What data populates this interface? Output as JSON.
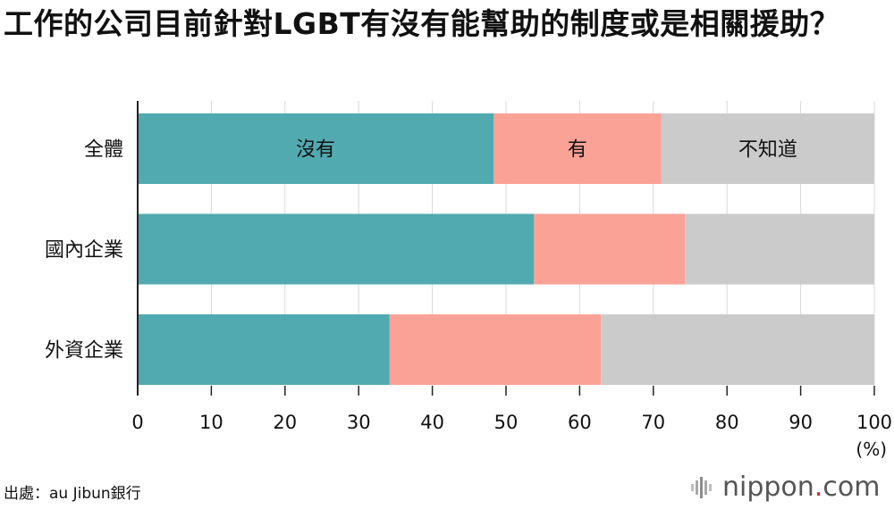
{
  "title": "工作的公司目前針對LGBT有沒有能幫助的制度或是相關援助？",
  "source": "出處：au Jibun銀行",
  "brand": {
    "name": "nippon",
    "dot": ".",
    "tld": "com"
  },
  "colors": {
    "no": "#52aab1",
    "yes": "#fba297",
    "unknown": "#cbcbcb",
    "grid": "#d8d8d8"
  },
  "chart_data": {
    "type": "bar",
    "orientation": "horizontal",
    "stacked": true,
    "categories": [
      "全體",
      "國內企業",
      "外資企業"
    ],
    "series": [
      {
        "name": "沒有",
        "values": [
          48.3,
          53.8,
          34.2
        ]
      },
      {
        "name": "有",
        "values": [
          22.8,
          20.5,
          28.7
        ]
      },
      {
        "name": "不知道",
        "values": [
          28.9,
          25.7,
          37.1
        ]
      }
    ],
    "xlim": [
      0,
      100
    ],
    "xticks": [
      0,
      10,
      20,
      30,
      40,
      50,
      60,
      70,
      80,
      90,
      100
    ],
    "unit": "(%)",
    "grid": true,
    "legend": "inside-first-bar"
  }
}
